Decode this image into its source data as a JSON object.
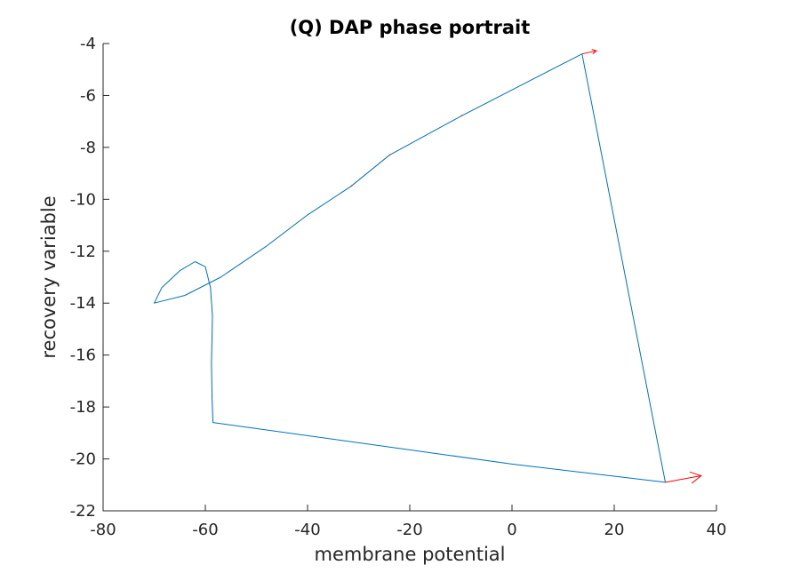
{
  "chart_data": {
    "type": "line",
    "title": "(Q) DAP phase portrait",
    "xlabel": "membrane potential",
    "ylabel": "recovery variable",
    "xlim": [
      -80,
      40
    ],
    "ylim": [
      -22,
      -4
    ],
    "xticks": [
      -80,
      -60,
      -40,
      -20,
      0,
      20,
      40
    ],
    "yticks": [
      -22,
      -20,
      -18,
      -16,
      -14,
      -12,
      -10,
      -8,
      -6,
      -4
    ],
    "grid": false,
    "series": [
      {
        "color": "#0072bd",
        "x": [
          13.7,
          -10,
          -24,
          -31.5,
          -40,
          -48,
          -57,
          -64,
          -70,
          -68.5,
          -65,
          -62,
          -60,
          -59,
          -58.6,
          -58.8,
          -58.7,
          -58.5,
          0,
          30,
          13.7
        ],
        "y": [
          -4.4,
          -6.8,
          -8.3,
          -9.5,
          -10.6,
          -11.8,
          -13.0,
          -13.7,
          -14.0,
          -13.4,
          -12.75,
          -12.4,
          -12.6,
          -13.4,
          -14.5,
          -16.3,
          -17.6,
          -18.6,
          -20.2,
          -20.9,
          -4.4
        ]
      }
    ],
    "arrows": {
      "color": "#ff0000",
      "quivers": [
        {
          "x": 13.7,
          "y": -4.4,
          "u": 2.8,
          "v": 0.12
        },
        {
          "x": 30,
          "y": -20.9,
          "u": 7.0,
          "v": 0.25
        },
        {
          "x": -10,
          "y": -6.8,
          "u": 0.25,
          "v": 0.04
        },
        {
          "x": -24,
          "y": -8.3,
          "u": 0.25,
          "v": 0.04
        },
        {
          "x": -31.5,
          "y": -9.5,
          "u": 0.25,
          "v": 0.04
        }
      ]
    }
  }
}
